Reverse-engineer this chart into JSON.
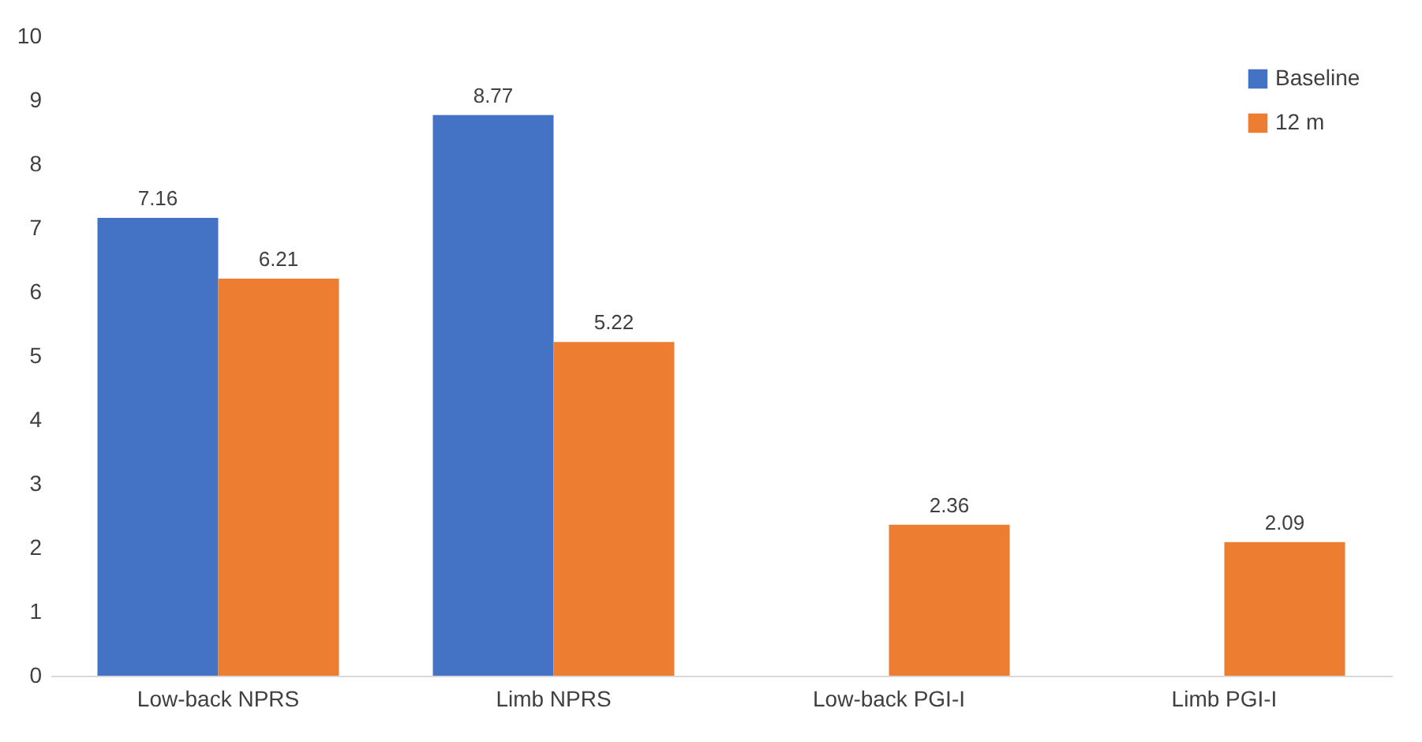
{
  "chart_data": {
    "type": "bar",
    "categories": [
      "Low-back NPRS",
      "Limb NPRS",
      "Low-back PGI-I",
      "Limb PGI-I"
    ],
    "series": [
      {
        "name": "Baseline",
        "color": "#4472c4",
        "values": [
          7.16,
          8.77,
          null,
          null
        ]
      },
      {
        "name": "12 m",
        "color": "#ed7d31",
        "values": [
          6.21,
          5.22,
          2.36,
          2.09
        ]
      }
    ],
    "ylim": [
      0,
      10
    ],
    "yticks": [
      0,
      1,
      2,
      3,
      4,
      5,
      6,
      7,
      8,
      9,
      10
    ],
    "grid": false,
    "legend": "top right",
    "data_labels": true
  }
}
